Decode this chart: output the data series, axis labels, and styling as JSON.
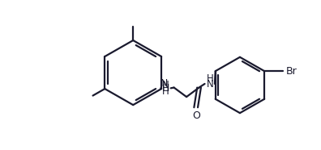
{
  "bg_color": "#ffffff",
  "bond_color": "#1a1a2e",
  "atom_color": "#1a1a2e",
  "lw": 1.6,
  "fs": 9.0,
  "xlim": [
    0,
    396
  ],
  "ylim": [
    0,
    186
  ]
}
